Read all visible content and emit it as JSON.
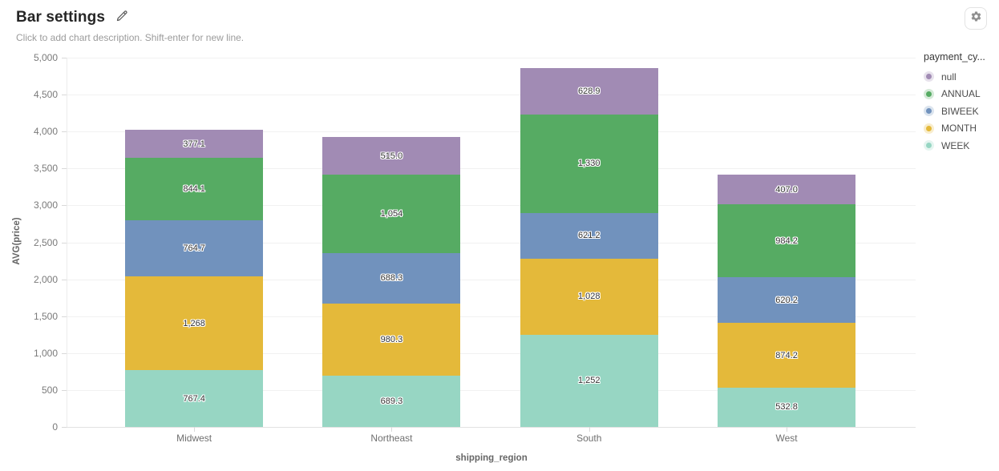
{
  "header": {
    "title": "Bar settings",
    "subtitle": "Click to add chart description. Shift-enter for new line.",
    "edit_icon": "pencil-icon",
    "settings_icon": "gear-icon"
  },
  "chart_data": {
    "type": "bar",
    "stacked": true,
    "title": "Bar settings",
    "xlabel": "shipping_region",
    "ylabel": "AVG(price)",
    "categories": [
      "Midwest",
      "Northeast",
      "South",
      "West"
    ],
    "series": [
      {
        "name": "null",
        "color": "#a18bb4",
        "values": [
          377.1,
          515.0,
          628.9,
          407.0
        ],
        "labels": [
          "377.1",
          "515.0",
          "628.9",
          "407.0"
        ]
      },
      {
        "name": "ANNUAL",
        "color": "#56ab63",
        "values": [
          844.1,
          1054,
          1330,
          984.2
        ],
        "labels": [
          "844.1",
          "1,054",
          "1,330",
          "984.2"
        ]
      },
      {
        "name": "BIWEEK",
        "color": "#7192bd",
        "values": [
          764.7,
          688.3,
          621.2,
          620.2
        ],
        "labels": [
          "764.7",
          "688.3",
          "621.2",
          "620.2"
        ]
      },
      {
        "name": "MONTH",
        "color": "#e4b93a",
        "values": [
          1268,
          980.3,
          1028,
          874.2
        ],
        "labels": [
          "1,268",
          "980.3",
          "1,028",
          "874.2"
        ]
      },
      {
        "name": "WEEK",
        "color": "#97d6c3",
        "values": [
          767.4,
          689.3,
          1252,
          532.8
        ],
        "labels": [
          "767.4",
          "689.3",
          "1,252",
          "532.8"
        ]
      }
    ],
    "ylim": [
      0,
      5000
    ],
    "ytick_step": 500,
    "ytick_labels": [
      "0",
      "500",
      "1,000",
      "1,500",
      "2,000",
      "2,500",
      "3,000",
      "3,500",
      "4,000",
      "4,500",
      "5,000"
    ],
    "grid": true,
    "legend_title": "payment_cy...",
    "legend_position": "right",
    "bar_label_color": "#333333",
    "grid_color": "#f1f1f1",
    "axis_color": "#e2e2e2"
  }
}
